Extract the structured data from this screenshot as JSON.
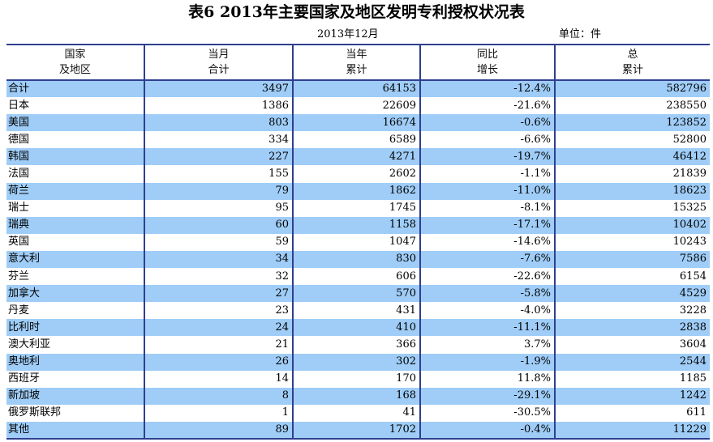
{
  "title": "表6   2013年主要国家及地区发明专利授权状况表",
  "date": "2013年12月",
  "unit": "单位：件",
  "headers": [
    {
      "line1": "国家",
      "line2": "及地区"
    },
    {
      "line1": "当月",
      "line2": "合计"
    },
    {
      "line1": "当年",
      "line2": "累计"
    },
    {
      "line1": "同比",
      "line2": "增长"
    },
    {
      "line1": "总",
      "line2": "累计"
    }
  ],
  "rows": [
    {
      "region": "合计",
      "month": "3497",
      "year": "64153",
      "growth": "-12.4%",
      "total": "582796"
    },
    {
      "region": "日本",
      "month": "1386",
      "year": "22609",
      "growth": "-21.6%",
      "total": "238550"
    },
    {
      "region": "美国",
      "month": "803",
      "year": "16674",
      "growth": "-0.6%",
      "total": "123852"
    },
    {
      "region": "德国",
      "month": "334",
      "year": "6589",
      "growth": "-6.6%",
      "total": "52800"
    },
    {
      "region": "韩国",
      "month": "227",
      "year": "4271",
      "growth": "-19.7%",
      "total": "46412"
    },
    {
      "region": "法国",
      "month": "155",
      "year": "2602",
      "growth": "-1.1%",
      "total": "21839"
    },
    {
      "region": "荷兰",
      "month": "79",
      "year": "1862",
      "growth": "-11.0%",
      "total": "18623"
    },
    {
      "region": "瑞士",
      "month": "95",
      "year": "1745",
      "growth": "-8.1%",
      "total": "15325"
    },
    {
      "region": "瑞典",
      "month": "60",
      "year": "1158",
      "growth": "-17.1%",
      "total": "10402"
    },
    {
      "region": "英国",
      "month": "59",
      "year": "1047",
      "growth": "-14.6%",
      "total": "10243"
    },
    {
      "region": "意大利",
      "month": "34",
      "year": "830",
      "growth": "-7.6%",
      "total": "7586"
    },
    {
      "region": "芬兰",
      "month": "32",
      "year": "606",
      "growth": "-22.6%",
      "total": "6154"
    },
    {
      "region": "加拿大",
      "month": "27",
      "year": "570",
      "growth": "-5.8%",
      "total": "4529"
    },
    {
      "region": "丹麦",
      "month": "23",
      "year": "431",
      "growth": "-4.0%",
      "total": "3228"
    },
    {
      "region": "比利时",
      "month": "24",
      "year": "410",
      "growth": "-11.1%",
      "total": "2838"
    },
    {
      "region": "澳大利亚",
      "month": "21",
      "year": "366",
      "growth": "3.7%",
      "total": "3604"
    },
    {
      "region": "奥地利",
      "month": "26",
      "year": "302",
      "growth": "-1.9%",
      "total": "2544"
    },
    {
      "region": "西班牙",
      "month": "14",
      "year": "170",
      "growth": "11.8%",
      "total": "1185"
    },
    {
      "region": "新加坡",
      "month": "8",
      "year": "168",
      "growth": "-29.1%",
      "total": "1242"
    },
    {
      "region": "俄罗斯联邦",
      "month": "1",
      "year": "41",
      "growth": "-30.5%",
      "total": "611"
    },
    {
      "region": "其他",
      "month": "89",
      "year": "1702",
      "growth": "-0.4%",
      "total": "11229"
    }
  ],
  "colors": {
    "shade": "#9fcdf7",
    "rule": "#2f3f8f"
  }
}
